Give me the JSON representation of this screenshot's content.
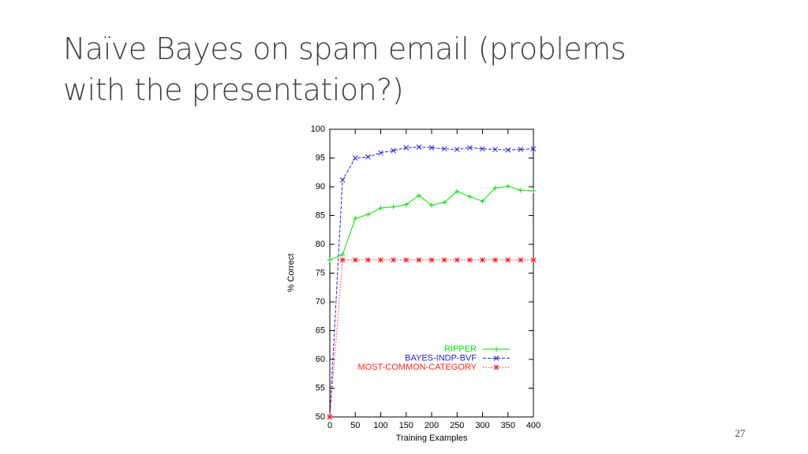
{
  "title": "Naïve Bayes on spam email (problems with the presentation?)",
  "page_number": "27",
  "chart_data": {
    "type": "line",
    "xlabel": "Training Examples",
    "ylabel": "% Correct",
    "x": [
      0,
      25,
      50,
      75,
      100,
      125,
      150,
      175,
      200,
      225,
      250,
      275,
      300,
      325,
      350,
      375,
      400
    ],
    "series": [
      {
        "name": "RIPPER",
        "color": "#00e000",
        "marker": "+",
        "line_style": "solid",
        "values": [
          77.3,
          78.2,
          84.5,
          85.2,
          86.3,
          86.5,
          86.9,
          88.5,
          86.8,
          87.3,
          89.2,
          88.3,
          87.5,
          89.8,
          90.1,
          89.4,
          89.3
        ]
      },
      {
        "name": "BAYES-INDP-BVF",
        "color": "#2020e0",
        "marker": "x",
        "line_style": "dashed",
        "values": [
          50,
          91.2,
          95,
          95.2,
          95.9,
          96.3,
          96.8,
          96.9,
          96.8,
          96.6,
          96.5,
          96.8,
          96.6,
          96.5,
          96.4,
          96.5,
          96.6
        ]
      },
      {
        "name": "MOST-COMMON-CATEGORY",
        "color": "#ff2020",
        "marker": "*",
        "line_style": "dotted",
        "values": [
          50,
          77.3,
          77.3,
          77.3,
          77.3,
          77.3,
          77.3,
          77.3,
          77.3,
          77.3,
          77.3,
          77.3,
          77.3,
          77.3,
          77.3,
          77.3,
          77.3
        ]
      }
    ],
    "xlim": [
      0,
      400
    ],
    "xticks": [
      0,
      50,
      100,
      150,
      200,
      250,
      300,
      350,
      400
    ],
    "ylim": [
      50,
      100
    ],
    "yticks": [
      50,
      55,
      60,
      65,
      70,
      75,
      80,
      85,
      90,
      95,
      100
    ],
    "legend": "lower-right"
  }
}
